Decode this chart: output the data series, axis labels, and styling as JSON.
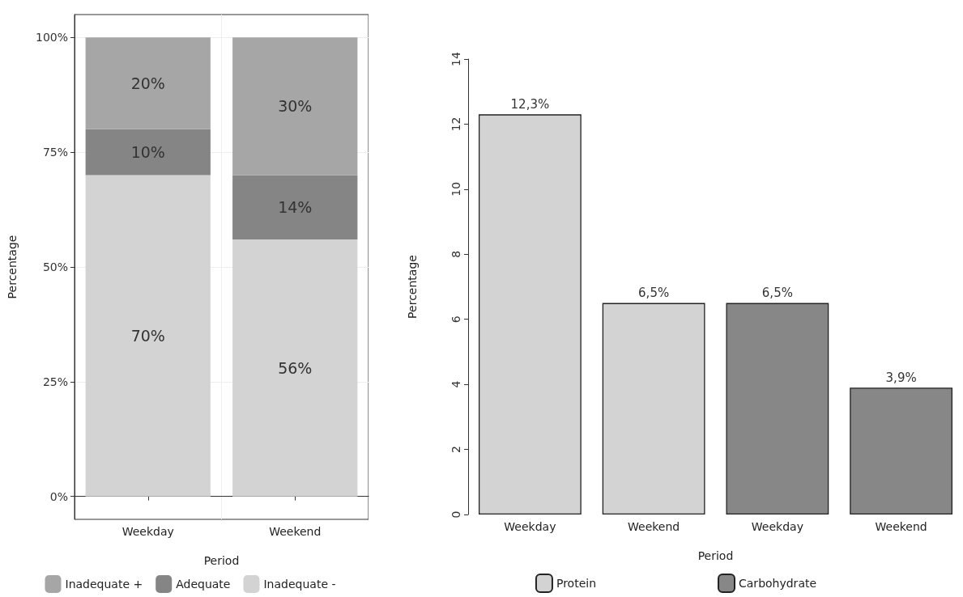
{
  "chart_data": [
    {
      "type": "bar",
      "stacked": true,
      "xlabel": "Period",
      "ylabel": "Percentage",
      "categories": [
        "Weekday",
        "Weekend"
      ],
      "series": [
        {
          "name": "Inadequate -",
          "color": "#d3d3d3",
          "values": [
            70,
            56
          ],
          "value_labels": [
            "70%",
            "56%"
          ]
        },
        {
          "name": "Adequate",
          "color": "#858585",
          "values": [
            10,
            14
          ],
          "value_labels": [
            "10%",
            "14%"
          ]
        },
        {
          "name": "Inadequate +",
          "color": "#a6a6a6",
          "values": [
            20,
            30
          ],
          "value_labels": [
            "20%",
            "30%"
          ]
        }
      ],
      "ylim": [
        -5,
        105
      ],
      "yticks": [
        {
          "value": 0,
          "label": "0%"
        },
        {
          "value": 25,
          "label": "25%"
        },
        {
          "value": 50,
          "label": "50%"
        },
        {
          "value": 75,
          "label": "75%"
        },
        {
          "value": 100,
          "label": "100%"
        }
      ],
      "grid": true,
      "legend": "bottom"
    },
    {
      "type": "bar",
      "xlabel": "Period",
      "ylabel": "Percentage",
      "categories": [
        "Weekday",
        "Weekend",
        "Weekday",
        "Weekend"
      ],
      "series": [
        {
          "name": "Protein",
          "color": "#d3d3d3",
          "values": [
            12.3,
            6.5,
            null,
            null
          ],
          "value_labels": [
            "12,3%",
            "6,5%",
            null,
            null
          ]
        },
        {
          "name": "Carbohydrate",
          "color": "#878787",
          "values": [
            null,
            null,
            6.5,
            3.9
          ],
          "value_labels": [
            null,
            null,
            "6,5%",
            "3,9%"
          ]
        }
      ],
      "ylim": [
        0,
        14
      ],
      "yticks": [
        0,
        2,
        4,
        6,
        8,
        10,
        12,
        14
      ],
      "legend": "bottom"
    }
  ]
}
